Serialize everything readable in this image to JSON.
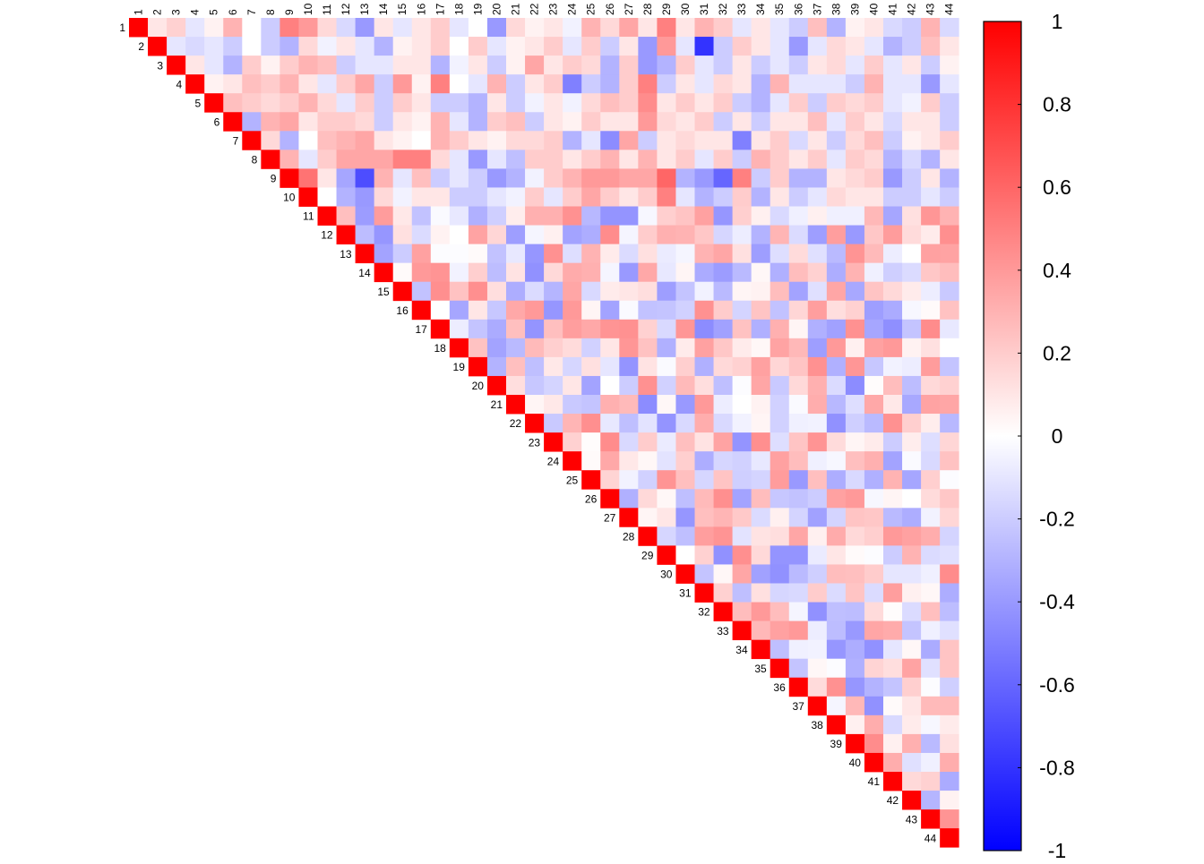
{
  "chart_data": {
    "type": "heatmap",
    "subtype": "correlation-matrix-upper-triangle",
    "title": "",
    "xlabel": "",
    "ylabel": "",
    "variables": [
      "1",
      "2",
      "3",
      "4",
      "5",
      "6",
      "7",
      "8",
      "9",
      "10",
      "11",
      "12",
      "13",
      "14",
      "15",
      "16",
      "17",
      "18",
      "19",
      "20",
      "21",
      "22",
      "23",
      "24",
      "25",
      "26",
      "27",
      "28",
      "29",
      "30",
      "31",
      "32",
      "33",
      "34",
      "35",
      "36",
      "37",
      "38",
      "39",
      "40",
      "41",
      "42",
      "43",
      "44"
    ],
    "colorbar": {
      "min": -1,
      "max": 1,
      "ticks": [
        1,
        0.8,
        0.6,
        0.4,
        0.2,
        0,
        -0.2,
        -0.4,
        -0.6,
        -0.8,
        -1
      ],
      "tick_labels": [
        "1",
        "0.8",
        "0.6",
        "0.4",
        "0.2",
        "0",
        "-0.2",
        "-0.4",
        "-0.6",
        "-0.8",
        "-1"
      ],
      "colors": {
        "low": "#0000ff",
        "mid": "#ffffff",
        "high": "#ff0000"
      }
    },
    "grid": false,
    "legend_position": "right",
    "diagonal_value": 1,
    "correlations": [
      [
        1,
        0.1,
        0.18,
        -0.1,
        0.05,
        0.3,
        0,
        -0.2,
        0.5,
        0.4,
        0.15,
        -0.15,
        -0.4,
        0.1,
        -0.1,
        0.1,
        0.2,
        -0.1,
        0,
        -0.4,
        0.15,
        0.05,
        0.1,
        -0.05,
        0.3,
        0.15,
        0.35,
        0.1,
        0.5,
        0.1,
        0.3,
        0.2,
        -0.1,
        0.1,
        -0.1,
        -0.2,
        0.25,
        -0.3,
        0.05,
        0.1,
        -0.15,
        -0.2,
        0.3,
        -0.15
      ],
      [
        null,
        1,
        -0.1,
        -0.15,
        -0.1,
        -0.2,
        0,
        -0.2,
        -0.3,
        0.15,
        -0.05,
        0.1,
        -0.1,
        -0.3,
        0.05,
        0.1,
        0.2,
        0,
        0.2,
        -0.1,
        0.05,
        0.1,
        0.2,
        -0.1,
        0.2,
        -0.2,
        0.1,
        -0.4,
        0.4,
        -0.1,
        -0.8,
        -0.2,
        0.2,
        0.1,
        -0.1,
        -0.4,
        -0.1,
        0.15,
        0.1,
        -0.1,
        -0.3,
        -0.2,
        0.25,
        0.1
      ],
      [
        null,
        null,
        1,
        0.1,
        -0.1,
        -0.3,
        0.2,
        0.05,
        0.2,
        0.3,
        0.25,
        -0.2,
        -0.1,
        -0.1,
        0.1,
        0.1,
        -0.3,
        -0.05,
        0.1,
        -0.2,
        0.05,
        0.35,
        0.1,
        0.2,
        0.15,
        -0.3,
        0.2,
        -0.4,
        -0.3,
        0.2,
        -0.1,
        -0.2,
        0.1,
        -0.2,
        -0.1,
        -0.2,
        0.1,
        0.15,
        -0.1,
        0.2,
        -0.1,
        0.1,
        -0.2,
        0.05
      ],
      [
        null,
        null,
        null,
        1,
        0.05,
        0.1,
        0.25,
        0.2,
        0.3,
        0.1,
        -0.1,
        0.2,
        0.35,
        -0.2,
        0.4,
        0.05,
        0.5,
        0,
        -0.1,
        0.3,
        -0.2,
        0.1,
        0.2,
        -0.5,
        -0.2,
        -0.3,
        0.2,
        0.5,
        -0.2,
        0.1,
        -0.1,
        0.15,
        0.1,
        -0.3,
        0.3,
        -0.1,
        -0.1,
        -0.1,
        -0.2,
        0.3,
        -0.1,
        -0.1,
        -0.4,
        -0.1
      ],
      [
        null,
        null,
        null,
        null,
        1,
        0.25,
        0.2,
        0.15,
        0.2,
        0.3,
        0.15,
        -0.1,
        0.2,
        -0.2,
        0.2,
        0.1,
        -0.2,
        -0.2,
        -0.3,
        0.1,
        -0.2,
        -0.05,
        0.1,
        -0.05,
        0.15,
        0.25,
        0.2,
        0.45,
        0.1,
        0.2,
        0.1,
        0.2,
        -0.2,
        -0.3,
        -0.1,
        0.2,
        -0.2,
        0.2,
        0.15,
        0.2,
        -0.1,
        -0.05,
        0.2,
        -0.2
      ],
      [
        null,
        null,
        null,
        null,
        null,
        1,
        -0.3,
        0.3,
        0.35,
        0.1,
        0.2,
        0.2,
        0.15,
        -0.2,
        0.1,
        0.05,
        0.3,
        -0.1,
        -0.3,
        0.2,
        0.25,
        -0.2,
        0.1,
        0.05,
        0.2,
        0.1,
        0.1,
        0.4,
        0.15,
        0.1,
        0.2,
        -0.2,
        0.1,
        -0.2,
        0.1,
        0.1,
        0.25,
        -0.1,
        0.2,
        0.1,
        -0.15,
        0.1,
        0.1,
        -0.2
      ],
      [
        null,
        null,
        null,
        null,
        null,
        null,
        1,
        0.15,
        -0.3,
        0,
        0.25,
        0.3,
        0.35,
        0.1,
        0.05,
        0,
        0.3,
        0.2,
        0.1,
        0.05,
        0.15,
        0.15,
        0.2,
        -0.3,
        -0.1,
        -0.45,
        0.35,
        -0.2,
        0.1,
        0.15,
        0.1,
        0.1,
        -0.5,
        0.1,
        0.2,
        -0.15,
        0.1,
        -0.2,
        0.15,
        0.25,
        -0.2,
        0.05,
        0.1,
        0.2
      ],
      [
        null,
        null,
        null,
        null,
        null,
        null,
        null,
        1,
        0.3,
        -0.1,
        0.2,
        0.35,
        0.35,
        0.35,
        0.5,
        0.5,
        0.15,
        -0.1,
        -0.4,
        -0.1,
        -0.25,
        0.2,
        0.2,
        0.1,
        0.2,
        0.3,
        0.1,
        0.3,
        0.1,
        0.2,
        -0.1,
        0.2,
        -0.2,
        0.3,
        0.2,
        0.1,
        0.2,
        -0.1,
        0.2,
        0.15,
        -0.3,
        -0.15,
        -0.3,
        0.1
      ],
      [
        null,
        null,
        null,
        null,
        null,
        null,
        null,
        null,
        1,
        0.55,
        0.1,
        -0.35,
        -0.7,
        0.3,
        -0.1,
        0.25,
        -0.2,
        -0.1,
        -0.2,
        -0.4,
        -0.3,
        -0.05,
        0.2,
        0.3,
        0.4,
        0.4,
        0.35,
        0.35,
        0.6,
        -0.3,
        -0.4,
        -0.6,
        0.5,
        -0.2,
        0.2,
        -0.3,
        -0.3,
        0.1,
        0.15,
        0.2,
        -0.4,
        -0.2,
        0.1,
        -0.3
      ],
      [
        null,
        null,
        null,
        null,
        null,
        null,
        null,
        null,
        null,
        1,
        0,
        -0.3,
        -0.4,
        0.15,
        -0.05,
        0.1,
        0.1,
        -0.2,
        -0.2,
        -0.1,
        -0.05,
        0.2,
        -0.1,
        0.2,
        0.35,
        0.2,
        0.1,
        0.2,
        0.5,
        -0.1,
        -0.3,
        -0.2,
        0.2,
        -0.3,
        0.1,
        -0.2,
        -0.1,
        0.15,
        0.1,
        0.1,
        -0.2,
        -0.2,
        -0.1,
        -0.2
      ]
    ]
  }
}
